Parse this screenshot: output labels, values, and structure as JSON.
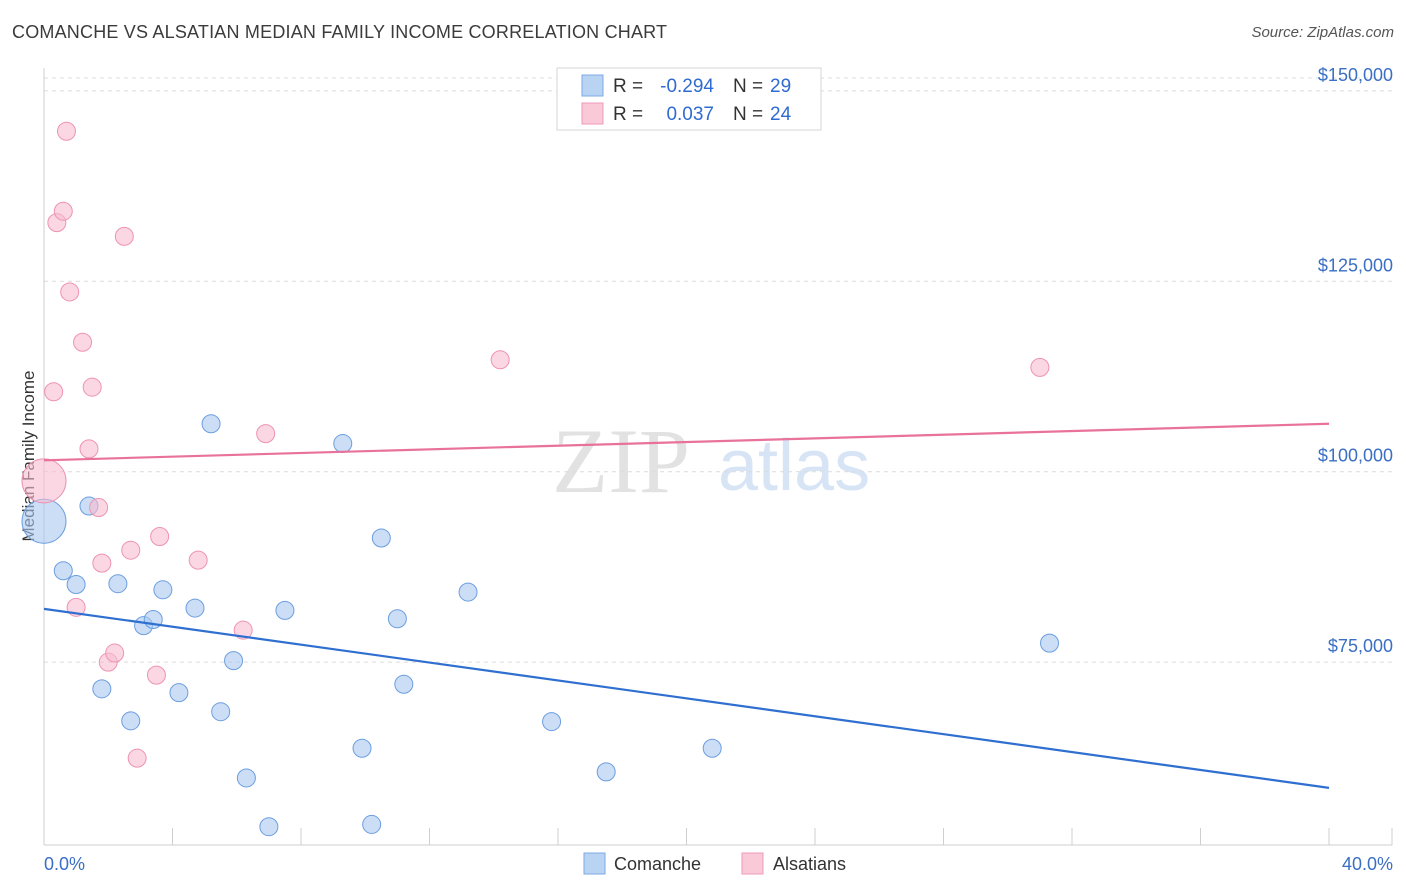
{
  "title": "COMANCHE VS ALSATIAN MEDIAN FAMILY INCOME CORRELATION CHART",
  "source": "Source: ZipAtlas.com",
  "watermark": {
    "zip": "ZIP",
    "atlas": "atlas"
  },
  "legend": {
    "rows": [
      {
        "r_label": "R =",
        "r_value": "-0.294",
        "n_label": "N =",
        "n_value": "29"
      },
      {
        "r_label": "R =",
        "r_value": "0.037",
        "n_label": "N =",
        "n_value": "24"
      }
    ]
  },
  "colors": {
    "comanche_fill": "#a9c8f0",
    "comanche_stroke": "#6c9ee0",
    "comanche_line": "#2f6fd0",
    "alsatian_fill": "#f7bdd0",
    "alsatian_stroke": "#ee93b2",
    "alsatian_line": "#e8729a",
    "tick_text": "#3a6fc4"
  },
  "chart_data": {
    "type": "scatter",
    "title": "COMANCHE VS ALSATIAN MEDIAN FAMILY INCOME CORRELATION CHART",
    "xlabel": "",
    "ylabel": "Median Family Income",
    "xlim": [
      0,
      40
    ],
    "ylim": [
      51000,
      153000
    ],
    "x_tick_labels": [
      "0.0%",
      "40.0%"
    ],
    "y_ticks": [
      {
        "value": 75000,
        "label": "$75,000"
      },
      {
        "value": 100000,
        "label": "$100,000"
      },
      {
        "value": 125000,
        "label": "$125,000"
      },
      {
        "value": 150000,
        "label": "$150,000"
      }
    ],
    "series": [
      {
        "name": "Comanche",
        "trend": {
          "x": [
            0,
            40
          ],
          "y": [
            82000,
            58500
          ]
        },
        "points": [
          {
            "x": 0.0,
            "y": 93500,
            "size": "large"
          },
          {
            "x": 0.6,
            "y": 87000
          },
          {
            "x": 1.0,
            "y": 85200
          },
          {
            "x": 1.4,
            "y": 95500
          },
          {
            "x": 1.8,
            "y": 71500
          },
          {
            "x": 2.3,
            "y": 85300
          },
          {
            "x": 2.7,
            "y": 67300
          },
          {
            "x": 3.1,
            "y": 79800
          },
          {
            "x": 3.4,
            "y": 80600
          },
          {
            "x": 3.7,
            "y": 84500
          },
          {
            "x": 4.2,
            "y": 71000
          },
          {
            "x": 4.7,
            "y": 82100
          },
          {
            "x": 5.2,
            "y": 106300
          },
          {
            "x": 5.5,
            "y": 68500
          },
          {
            "x": 5.9,
            "y": 75200
          },
          {
            "x": 6.3,
            "y": 59800
          },
          {
            "x": 7.0,
            "y": 53400
          },
          {
            "x": 7.5,
            "y": 81800
          },
          {
            "x": 9.3,
            "y": 103700
          },
          {
            "x": 9.9,
            "y": 63700
          },
          {
            "x": 10.2,
            "y": 53700
          },
          {
            "x": 10.5,
            "y": 91300
          },
          {
            "x": 11.0,
            "y": 80700
          },
          {
            "x": 11.2,
            "y": 72100
          },
          {
            "x": 13.2,
            "y": 84200
          },
          {
            "x": 15.8,
            "y": 67200
          },
          {
            "x": 17.5,
            "y": 60600
          },
          {
            "x": 20.8,
            "y": 63700
          },
          {
            "x": 31.3,
            "y": 77500
          }
        ]
      },
      {
        "name": "Alsatians",
        "trend": {
          "x": [
            0,
            40
          ],
          "y": [
            101500,
            106300
          ]
        },
        "points": [
          {
            "x": 0.0,
            "y": 98800,
            "size": "large"
          },
          {
            "x": 0.3,
            "y": 110500
          },
          {
            "x": 0.4,
            "y": 132700
          },
          {
            "x": 0.6,
            "y": 134200
          },
          {
            "x": 0.7,
            "y": 144700
          },
          {
            "x": 0.8,
            "y": 123600
          },
          {
            "x": 1.0,
            "y": 82200
          },
          {
            "x": 1.2,
            "y": 117000
          },
          {
            "x": 1.4,
            "y": 103000
          },
          {
            "x": 1.5,
            "y": 111100
          },
          {
            "x": 1.7,
            "y": 95300
          },
          {
            "x": 1.8,
            "y": 88000
          },
          {
            "x": 2.0,
            "y": 75000
          },
          {
            "x": 2.2,
            "y": 76200
          },
          {
            "x": 2.5,
            "y": 130900
          },
          {
            "x": 2.7,
            "y": 89700
          },
          {
            "x": 2.9,
            "y": 62400
          },
          {
            "x": 3.5,
            "y": 73300
          },
          {
            "x": 3.6,
            "y": 91500
          },
          {
            "x": 4.8,
            "y": 88400
          },
          {
            "x": 6.2,
            "y": 79200
          },
          {
            "x": 6.9,
            "y": 105000
          },
          {
            "x": 14.2,
            "y": 114700
          },
          {
            "x": 31.0,
            "y": 113700
          }
        ]
      }
    ]
  }
}
